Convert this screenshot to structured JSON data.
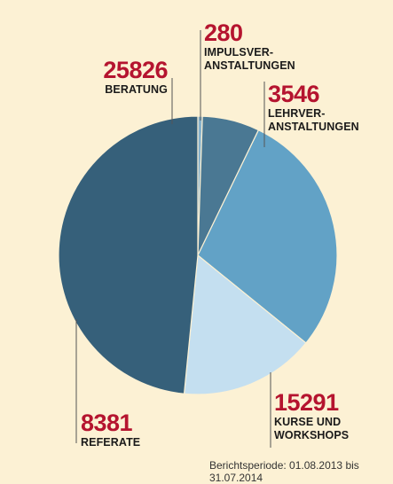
{
  "chart_data": {
    "type": "pie",
    "title": "",
    "slices": [
      {
        "value": 280,
        "label": "IMPULSVER-\nANSTALTUNGEN",
        "color": "#87b2cc"
      },
      {
        "value": 3546,
        "label": "LEHRVER-\nANSTALTUNGEN",
        "color": "#4a7893"
      },
      {
        "value": 15291,
        "label": "KURSE UND\nWORKSHOPS",
        "color": "#62a2c6"
      },
      {
        "value": 8381,
        "label": "REFERATE",
        "color": "#c4dff0"
      },
      {
        "value": 25826,
        "label": "BERATUNG",
        "color": "#36607a"
      }
    ],
    "value_labels": [
      "280",
      "3546",
      "15291",
      "8381",
      "25826"
    ]
  },
  "note": "Berichtsperiode: 01.08.2013 bis 31.07.2014"
}
